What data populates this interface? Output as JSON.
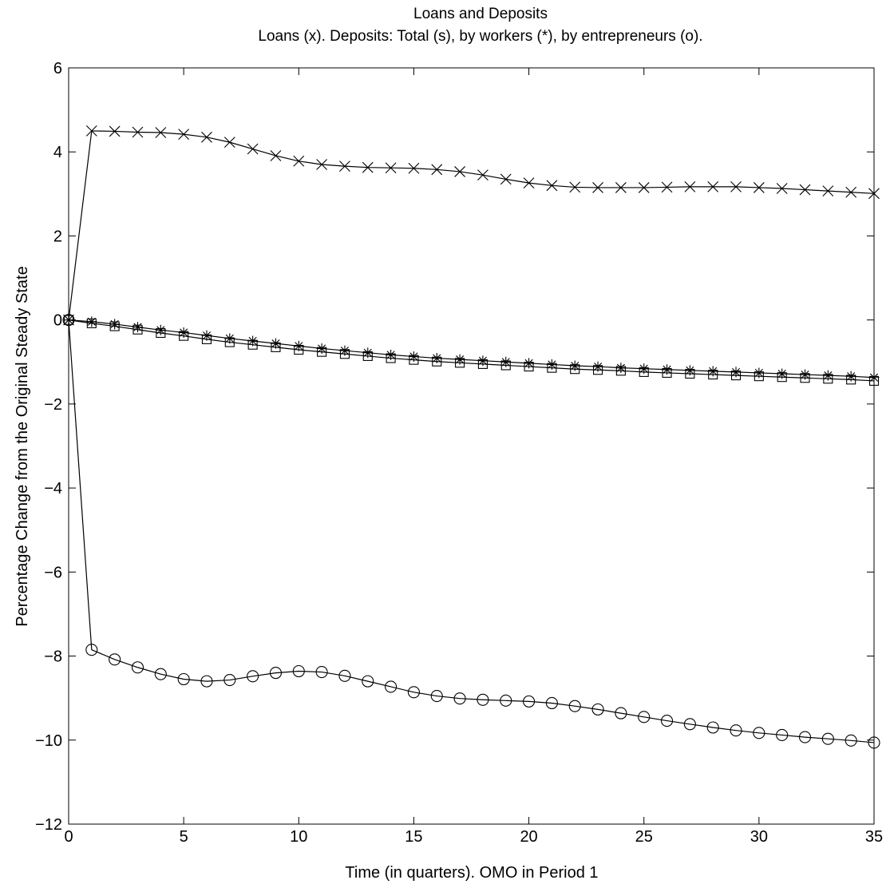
{
  "chart_data": {
    "type": "line",
    "title": "Loans and Deposits",
    "subtitle": "Loans (x). Deposits: Total (s), by workers (*), by entrepreneurs (o).",
    "xlabel": "Time (in quarters). OMO in Period 1",
    "ylabel": "Percentage Change from the Original Steady State",
    "xlim": [
      0,
      35
    ],
    "ylim": [
      -12,
      6
    ],
    "xticks": [
      0,
      5,
      10,
      15,
      20,
      25,
      30,
      35
    ],
    "yticks": [
      -12,
      -10,
      -8,
      -6,
      -4,
      -2,
      0,
      2,
      4,
      6
    ],
    "grid": false,
    "legend": "none",
    "x": [
      0,
      1,
      2,
      3,
      4,
      5,
      6,
      7,
      8,
      9,
      10,
      11,
      12,
      13,
      14,
      15,
      16,
      17,
      18,
      19,
      20,
      21,
      22,
      23,
      24,
      25,
      26,
      27,
      28,
      29,
      30,
      31,
      32,
      33,
      34,
      35
    ],
    "series": [
      {
        "marker": "x",
        "values": [
          0,
          4.5,
          4.49,
          4.47,
          4.46,
          4.42,
          4.35,
          4.23,
          4.07,
          3.91,
          3.78,
          3.7,
          3.66,
          3.63,
          3.62,
          3.61,
          3.58,
          3.53,
          3.45,
          3.35,
          3.26,
          3.2,
          3.16,
          3.15,
          3.15,
          3.15,
          3.16,
          3.17,
          3.17,
          3.17,
          3.15,
          3.13,
          3.1,
          3.07,
          3.04,
          3.01
        ]
      },
      {
        "marker": "*",
        "values": [
          0,
          -0.04,
          -0.1,
          -0.17,
          -0.24,
          -0.3,
          -0.37,
          -0.44,
          -0.5,
          -0.56,
          -0.62,
          -0.68,
          -0.73,
          -0.78,
          -0.83,
          -0.87,
          -0.91,
          -0.94,
          -0.97,
          -1.0,
          -1.03,
          -1.06,
          -1.09,
          -1.11,
          -1.14,
          -1.16,
          -1.18,
          -1.2,
          -1.22,
          -1.24,
          -1.26,
          -1.28,
          -1.3,
          -1.32,
          -1.34,
          -1.37
        ]
      },
      {
        "marker": "s",
        "values": [
          0,
          -0.08,
          -0.15,
          -0.23,
          -0.31,
          -0.38,
          -0.46,
          -0.53,
          -0.59,
          -0.65,
          -0.71,
          -0.76,
          -0.81,
          -0.86,
          -0.91,
          -0.95,
          -0.99,
          -1.02,
          -1.05,
          -1.08,
          -1.11,
          -1.14,
          -1.17,
          -1.19,
          -1.21,
          -1.24,
          -1.26,
          -1.28,
          -1.3,
          -1.32,
          -1.34,
          -1.36,
          -1.38,
          -1.4,
          -1.42,
          -1.45
        ]
      },
      {
        "marker": "o",
        "values": [
          0,
          -7.85,
          -8.08,
          -8.27,
          -8.43,
          -8.55,
          -8.6,
          -8.57,
          -8.48,
          -8.4,
          -8.36,
          -8.38,
          -8.47,
          -8.6,
          -8.73,
          -8.86,
          -8.95,
          -9.01,
          -9.04,
          -9.06,
          -9.08,
          -9.12,
          -9.19,
          -9.27,
          -9.36,
          -9.45,
          -9.54,
          -9.62,
          -9.7,
          -9.77,
          -9.83,
          -9.88,
          -9.93,
          -9.97,
          -10.01,
          -10.06
        ]
      }
    ]
  }
}
